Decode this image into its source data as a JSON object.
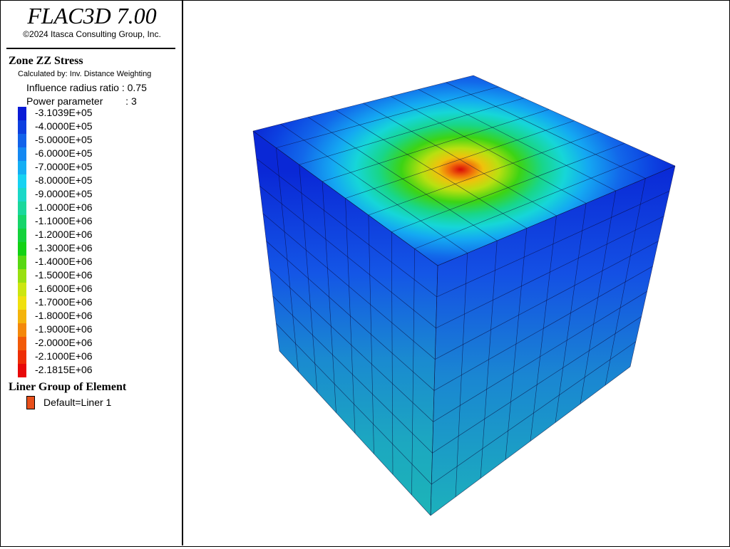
{
  "app": {
    "title": "FLAC3D 7.00",
    "copyright": "©2024 Itasca Consulting Group, Inc."
  },
  "legend": {
    "contour_title": "Zone ZZ Stress",
    "calculated_by": "Calculated by: Inv. Distance Weighting",
    "influence_radius": "Influence radius ratio : 0.75",
    "power_parameter_label": "Power parameter",
    "power_parameter_value": ": 3",
    "levels": [
      {
        "label": "-3.1039E+05",
        "color": "#0a1bd6"
      },
      {
        "label": "-4.0000E+05",
        "color": "#0d3fe0"
      },
      {
        "label": "-5.0000E+05",
        "color": "#1262ea"
      },
      {
        "label": "-6.0000E+05",
        "color": "#1388f2"
      },
      {
        "label": "-7.0000E+05",
        "color": "#14aef4"
      },
      {
        "label": "-8.0000E+05",
        "color": "#16d2f2"
      },
      {
        "label": "-9.0000E+05",
        "color": "#1ad8c8"
      },
      {
        "label": "-1.0000E+06",
        "color": "#1ad89c"
      },
      {
        "label": "-1.1000E+06",
        "color": "#16d56a"
      },
      {
        "label": "-1.2000E+06",
        "color": "#14d23c"
      },
      {
        "label": "-1.3000E+06",
        "color": "#12d214"
      },
      {
        "label": "-1.4000E+06",
        "color": "#58d812"
      },
      {
        "label": "-1.5000E+06",
        "color": "#98e010"
      },
      {
        "label": "-1.6000E+06",
        "color": "#cce610"
      },
      {
        "label": "-1.7000E+06",
        "color": "#f0e00e"
      },
      {
        "label": "-1.8000E+06",
        "color": "#f4b40c"
      },
      {
        "label": "-1.9000E+06",
        "color": "#f4880a"
      },
      {
        "label": "-2.0000E+06",
        "color": "#f25a08"
      },
      {
        "label": "-2.1000E+06",
        "color": "#ee2e06"
      },
      {
        "label": "-2.1815E+06",
        "color": "#e80808"
      }
    ],
    "liner_title": "Liner Group of Element",
    "liner_item": "Default=Liner 1",
    "liner_color": "#e8501c"
  }
}
